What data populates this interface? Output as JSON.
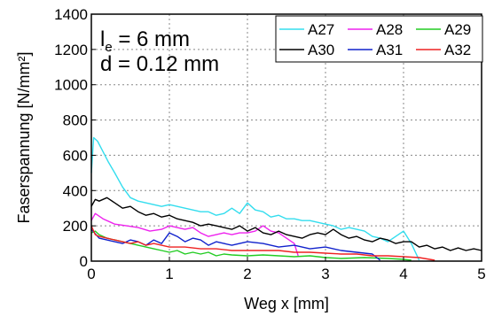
{
  "chart_data": {
    "type": "line",
    "xlabel": "Weg x [mm]",
    "ylabel": "Faserspannung [N/mm²]",
    "xlim": [
      0,
      5
    ],
    "ylim": [
      0,
      1400
    ],
    "xticks": [
      0,
      1,
      2,
      3,
      4,
      5
    ],
    "yticks": [
      0,
      200,
      400,
      600,
      800,
      1000,
      1200,
      1400
    ],
    "grid": true,
    "legend_position": "top-right",
    "annotation": {
      "var": "l",
      "sub": "e",
      "rest": " = 6 mm",
      "line2": "d = 0.12 mm"
    },
    "series": [
      {
        "name": "A27",
        "color": "#33ddee",
        "x": [
          0,
          0.03,
          0.08,
          0.15,
          0.22,
          0.3,
          0.4,
          0.5,
          0.6,
          0.7,
          0.8,
          0.9,
          1.0,
          1.1,
          1.2,
          1.3,
          1.4,
          1.5,
          1.6,
          1.7,
          1.8,
          1.9,
          2.0,
          2.1,
          2.2,
          2.3,
          2.4,
          2.5,
          2.6,
          2.7,
          2.8,
          2.9,
          3.0,
          3.1,
          3.2,
          3.3,
          3.4,
          3.5,
          3.6,
          3.7,
          3.8,
          3.9,
          4.0,
          4.1,
          4.2
        ],
        "y": [
          500,
          700,
          680,
          620,
          560,
          500,
          420,
          360,
          340,
          330,
          320,
          310,
          320,
          310,
          300,
          290,
          280,
          280,
          260,
          270,
          300,
          270,
          330,
          290,
          280,
          250,
          260,
          240,
          240,
          230,
          230,
          220,
          210,
          200,
          180,
          190,
          180,
          170,
          140,
          130,
          110,
          140,
          170,
          100,
          5
        ]
      },
      {
        "name": "A28",
        "color": "#ee22ee",
        "x": [
          0,
          0.05,
          0.15,
          0.3,
          0.45,
          0.6,
          0.75,
          0.9,
          1.0,
          1.1,
          1.2,
          1.3,
          1.4,
          1.5,
          1.6,
          1.7,
          1.8,
          1.9,
          2.0,
          2.1,
          2.2,
          2.3,
          2.4,
          2.5,
          2.6,
          2.65
        ],
        "y": [
          230,
          270,
          240,
          210,
          200,
          190,
          170,
          180,
          200,
          190,
          180,
          190,
          160,
          140,
          150,
          160,
          150,
          160,
          160,
          170,
          200,
          170,
          160,
          130,
          100,
          30
        ]
      },
      {
        "name": "A29",
        "color": "#22cc22",
        "x": [
          0,
          0.05,
          0.1,
          0.2,
          0.3,
          0.4,
          0.5,
          0.6,
          0.7,
          0.8,
          0.9,
          1.0,
          1.1,
          1.2,
          1.3,
          1.4,
          1.5,
          1.6,
          1.7,
          1.8,
          2.0,
          2.2,
          2.4,
          2.6,
          2.8,
          3.0,
          3.2,
          3.5,
          3.8,
          4.0,
          4.1
        ],
        "y": [
          160,
          170,
          150,
          130,
          120,
          110,
          100,
          90,
          80,
          70,
          60,
          50,
          60,
          40,
          50,
          40,
          50,
          30,
          40,
          35,
          30,
          35,
          30,
          25,
          30,
          20,
          15,
          20,
          15,
          10,
          5
        ]
      },
      {
        "name": "A30",
        "color": "#000000",
        "x": [
          0,
          0.05,
          0.1,
          0.2,
          0.3,
          0.4,
          0.5,
          0.6,
          0.7,
          0.8,
          0.9,
          1.0,
          1.1,
          1.2,
          1.3,
          1.4,
          1.5,
          1.6,
          1.7,
          1.8,
          1.9,
          2.0,
          2.1,
          2.2,
          2.3,
          2.4,
          2.5,
          2.6,
          2.7,
          2.8,
          2.9,
          3.0,
          3.1,
          3.2,
          3.3,
          3.4,
          3.5,
          3.6,
          3.7,
          3.8,
          3.9,
          4.0,
          4.1,
          4.2,
          4.3,
          4.4,
          4.5,
          4.6,
          4.7,
          4.8,
          4.9,
          5.0
        ],
        "y": [
          310,
          350,
          340,
          360,
          330,
          300,
          310,
          280,
          260,
          270,
          250,
          260,
          240,
          230,
          220,
          200,
          210,
          200,
          190,
          180,
          200,
          170,
          190,
          160,
          150,
          170,
          150,
          140,
          130,
          150,
          160,
          150,
          180,
          150,
          130,
          140,
          120,
          110,
          130,
          120,
          100,
          110,
          110,
          80,
          90,
          70,
          80,
          60,
          75,
          60,
          70,
          60
        ]
      },
      {
        "name": "A31",
        "color": "#1122cc",
        "x": [
          0,
          0.1,
          0.2,
          0.3,
          0.4,
          0.5,
          0.6,
          0.7,
          0.8,
          0.9,
          1.0,
          1.1,
          1.2,
          1.3,
          1.4,
          1.5,
          1.6,
          1.7,
          1.8,
          1.9,
          2.0,
          2.2,
          2.4,
          2.6,
          2.8,
          3.0,
          3.2,
          3.4,
          3.6,
          3.7
        ],
        "y": [
          180,
          130,
          120,
          110,
          100,
          120,
          110,
          90,
          120,
          100,
          160,
          140,
          110,
          130,
          120,
          90,
          110,
          100,
          90,
          100,
          110,
          100,
          80,
          90,
          70,
          80,
          60,
          50,
          40,
          5
        ]
      },
      {
        "name": "A32",
        "color": "#ee2222",
        "x": [
          0,
          0.05,
          0.1,
          0.2,
          0.3,
          0.4,
          0.5,
          0.6,
          0.7,
          0.8,
          0.9,
          1.0,
          1.2,
          1.4,
          1.6,
          1.8,
          2.0,
          2.2,
          2.4,
          2.6,
          2.8,
          3.0,
          3.2,
          3.4,
          3.6,
          3.8,
          4.0,
          4.2,
          4.4
        ],
        "y": [
          200,
          150,
          140,
          130,
          120,
          110,
          100,
          110,
          90,
          100,
          90,
          80,
          80,
          70,
          70,
          60,
          60,
          60,
          60,
          50,
          50,
          45,
          40,
          40,
          30,
          30,
          25,
          20,
          5
        ]
      }
    ]
  }
}
